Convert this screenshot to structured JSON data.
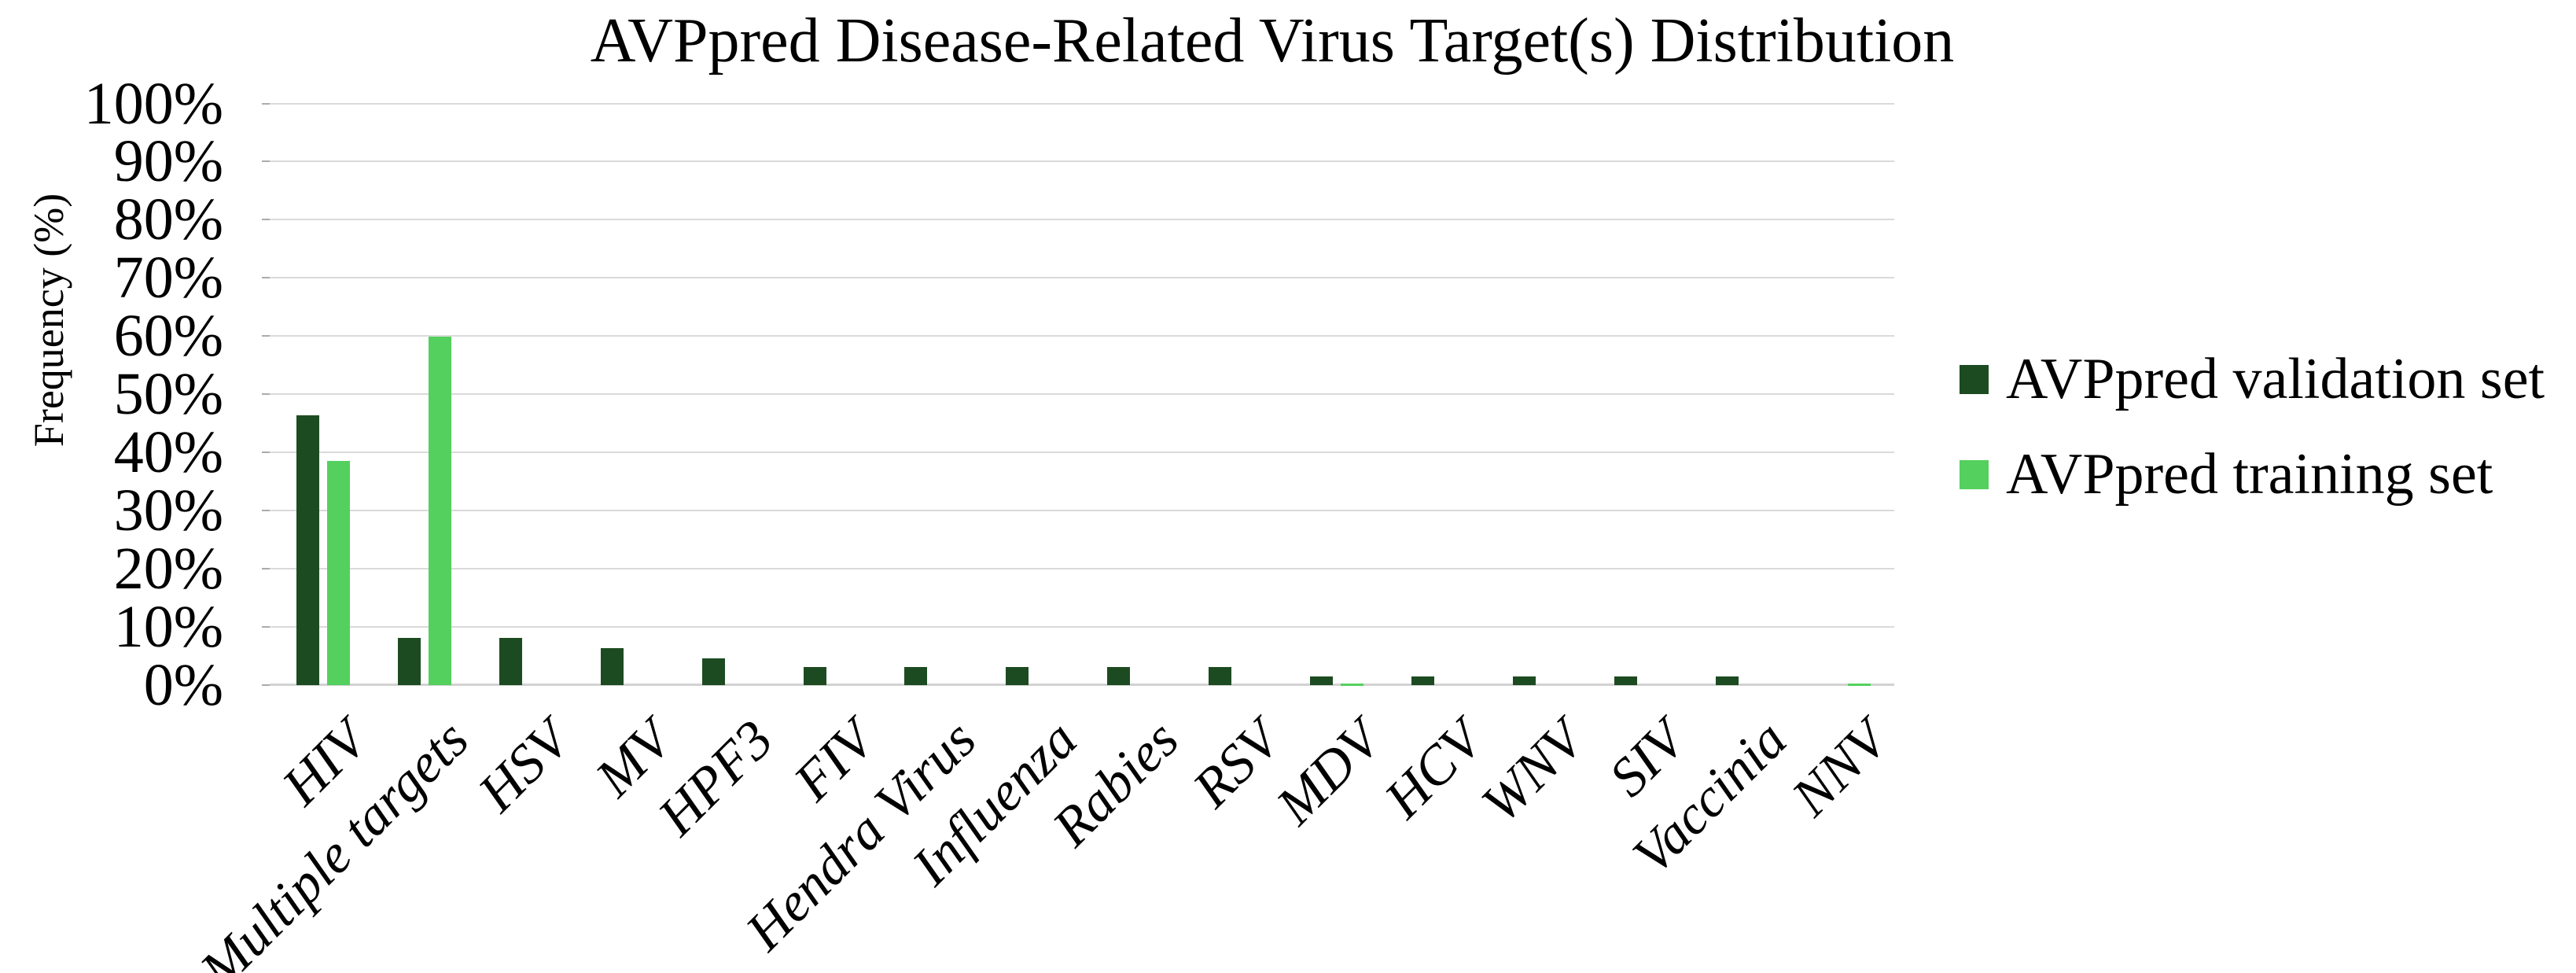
{
  "figure": {
    "background": "#ffffff"
  },
  "chart_data": {
    "type": "bar",
    "title": "AVPpred Disease-Related Virus Target(s) Distribution",
    "ylabel": "Frequency (%)",
    "xlabel": "",
    "ylim": [
      0,
      100
    ],
    "ytick_step": 10,
    "ytick_labels": [
      "0%",
      "10%",
      "20%",
      "30%",
      "40%",
      "50%",
      "60%",
      "70%",
      "80%",
      "90%",
      "100%"
    ],
    "grid": "horizontal",
    "gridline_color": "#dadada",
    "legend_position": "right",
    "categories": [
      "HIV",
      "Multiple targets",
      "HSV",
      "MV",
      "HPF3",
      "FIV",
      "Hendra Virus",
      "Influenza",
      "Rabies",
      "RSV",
      "MDV",
      "HCV",
      "WNV",
      "SIV",
      "Vaccinia",
      "NNV"
    ],
    "series": [
      {
        "name": "AVPpred validation set",
        "color": "#1d4b21",
        "values": [
          46.5,
          8.2,
          8.2,
          6.4,
          4.7,
          3.2,
          3.2,
          3.2,
          3.2,
          3.2,
          1.5,
          1.5,
          1.5,
          1.5,
          1.5,
          0
        ]
      },
      {
        "name": "AVPpred training set",
        "color": "#54d05e",
        "values": [
          38.7,
          60,
          0,
          0,
          0,
          0,
          0,
          0,
          0,
          0,
          0.4,
          0,
          0,
          0,
          0,
          0.4
        ]
      }
    ]
  }
}
